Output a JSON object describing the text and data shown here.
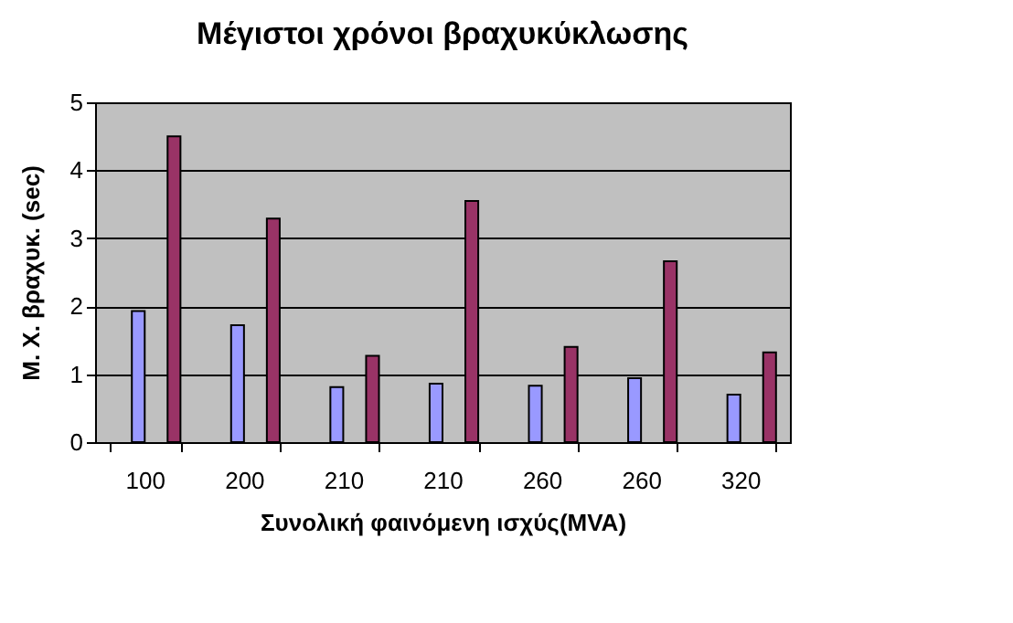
{
  "chart_data": {
    "type": "bar",
    "title": "Μέγιστοι χρόνοι βραχυκύκλωσης",
    "xlabel": "Συνολική φαινόμενη ισχύς(MVA)",
    "ylabel": "Μ. Χ. βραχυκ. (sec)",
    "categories": [
      "100",
      "200",
      "210",
      "210",
      "260",
      "260",
      "320"
    ],
    "series": [
      {
        "color": "#9999ff",
        "values": [
          1.93,
          1.72,
          0.81,
          0.86,
          0.83,
          0.94,
          0.7
        ]
      },
      {
        "color": "#993366",
        "values": [
          4.5,
          3.29,
          1.27,
          3.55,
          1.4,
          2.66,
          1.32
        ]
      }
    ],
    "ylim": [
      0,
      5
    ],
    "yticks": [
      0,
      1,
      2,
      3,
      4,
      5
    ],
    "grid": "y"
  }
}
